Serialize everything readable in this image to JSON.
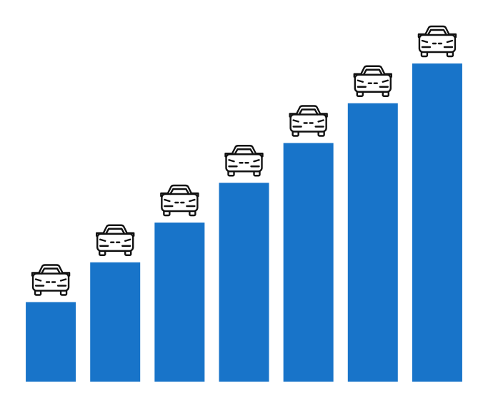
{
  "chart_data": {
    "type": "bar",
    "categories": [
      null,
      null,
      null,
      null,
      null,
      null,
      null
    ],
    "values": [
      2,
      3,
      4,
      5,
      6,
      7,
      8
    ],
    "color": "#1874c9",
    "ylim": [
      0,
      8
    ]
  }
}
